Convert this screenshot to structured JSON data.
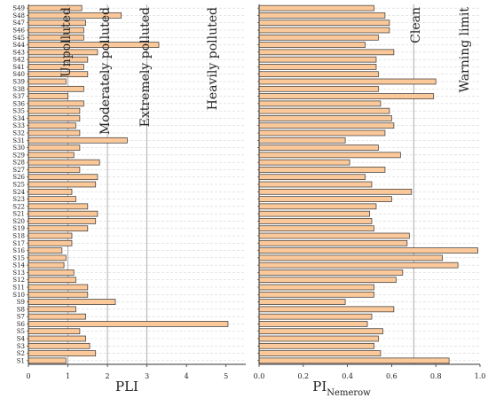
{
  "chart_data": [
    {
      "type": "bar",
      "orientation": "horizontal",
      "xlabel": "PLI",
      "xlim": [
        0,
        5.5
      ],
      "xticks": [
        "0",
        "1",
        "2",
        "3",
        "4",
        "5"
      ],
      "reference_lines": [
        1,
        2,
        3
      ],
      "zone_labels": [
        "Unpolluted",
        "Moderately polluted",
        "Extremely polluted",
        "Heavily polluted"
      ],
      "categories": [
        "S1",
        "S2",
        "S3",
        "S4",
        "S5",
        "S6",
        "S7",
        "S8",
        "S9",
        "S10",
        "S11",
        "S12",
        "S13",
        "S14",
        "S15",
        "S16",
        "S17",
        "S18",
        "S19",
        "S20",
        "S21",
        "S22",
        "S23",
        "S24",
        "S25",
        "S26",
        "S27",
        "S28",
        "S29",
        "S30",
        "S31",
        "S32",
        "S33",
        "S34",
        "S35",
        "S36",
        "S37",
        "S38",
        "S39",
        "S40",
        "S41",
        "S42",
        "S43",
        "S44",
        "S45",
        "S46",
        "S47",
        "S48",
        "S49"
      ],
      "values": [
        0.95,
        1.7,
        1.55,
        1.45,
        1.3,
        5.05,
        1.45,
        1.2,
        2.2,
        1.5,
        1.5,
        1.2,
        1.15,
        0.9,
        0.95,
        0.85,
        1.1,
        1.1,
        1.5,
        1.7,
        1.75,
        1.5,
        1.2,
        1.1,
        1.7,
        1.75,
        1.3,
        1.8,
        1.15,
        1.3,
        2.5,
        1.3,
        1.2,
        1.3,
        1.3,
        1.4,
        1.0,
        1.4,
        0.95,
        1.5,
        1.4,
        1.5,
        1.75,
        3.3,
        1.4,
        1.4,
        1.45,
        2.35,
        1.35
      ],
      "bar_color": "#fbc89a",
      "bar_edge": "#333333",
      "grid": true
    },
    {
      "type": "bar",
      "orientation": "horizontal",
      "xlabel": "PI",
      "xlabel_subscript": "Nemerow",
      "xlim": [
        0,
        1.0
      ],
      "xticks": [
        "0.0",
        "0.2",
        "0.4",
        "0.6",
        "0.8",
        "1.0"
      ],
      "reference_lines": [
        0.7
      ],
      "zone_labels": [
        "Clean",
        "Warning limit"
      ],
      "categories": [
        "S1",
        "S2",
        "S3",
        "S4",
        "S5",
        "S6",
        "S7",
        "S8",
        "S9",
        "S10",
        "S11",
        "S12",
        "S13",
        "S14",
        "S15",
        "S16",
        "S17",
        "S18",
        "S19",
        "S20",
        "S21",
        "S22",
        "S23",
        "S24",
        "S25",
        "S26",
        "S27",
        "S28",
        "S29",
        "S30",
        "S31",
        "S32",
        "S33",
        "S34",
        "S35",
        "S36",
        "S37",
        "S38",
        "S39",
        "S40",
        "S41",
        "S42",
        "S43",
        "S44",
        "S45",
        "S46",
        "S47",
        "S48",
        "S49"
      ],
      "values": [
        0.86,
        0.55,
        0.52,
        0.54,
        0.56,
        0.49,
        0.51,
        0.61,
        0.39,
        0.52,
        0.52,
        0.62,
        0.65,
        0.9,
        0.83,
        0.99,
        0.67,
        0.68,
        0.52,
        0.51,
        0.5,
        0.53,
        0.6,
        0.69,
        0.51,
        0.48,
        0.57,
        0.41,
        0.64,
        0.54,
        0.39,
        0.57,
        0.61,
        0.6,
        0.59,
        0.55,
        0.79,
        0.54,
        0.8,
        0.54,
        0.53,
        0.53,
        0.61,
        0.48,
        0.54,
        0.59,
        0.59,
        0.57,
        0.52
      ],
      "bar_color": "#fbc89a",
      "bar_edge": "#333333",
      "grid": true
    }
  ]
}
